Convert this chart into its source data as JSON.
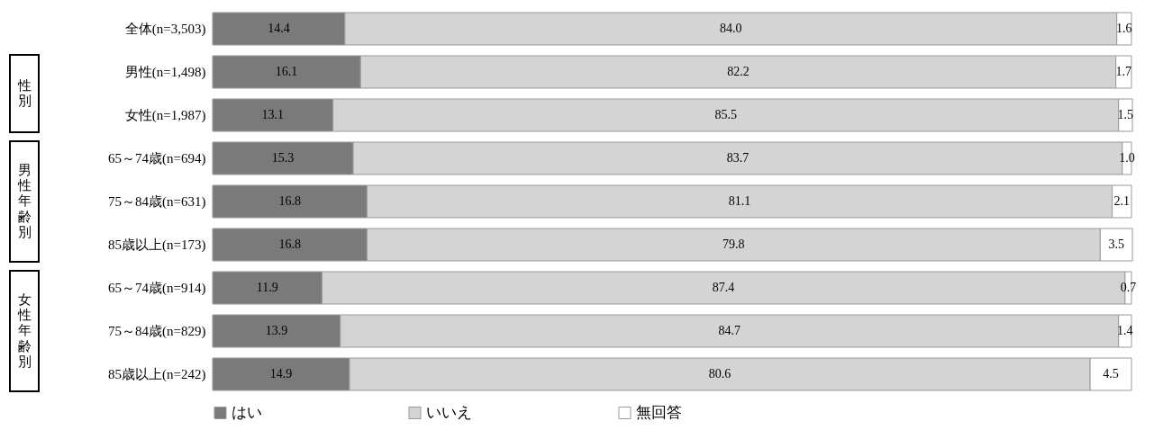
{
  "chart_data": {
    "type": "bar",
    "orientation": "horizontal",
    "stacked": true,
    "legend": "bottom",
    "xlim": [
      0,
      100
    ],
    "categories": [
      "全体(n=3,503)",
      "男性(n=1,498)",
      "女性(n=1,987)",
      "65～74歳(n=694)",
      "75～84歳(n=631)",
      "85歳以上(n=173)",
      "65～74歳(n=914)",
      "75～84歳(n=829)",
      "85歳以上(n=242)"
    ],
    "series": [
      {
        "name": "はい",
        "color": "#7a7a7a",
        "values": [
          14.4,
          16.1,
          13.1,
          15.3,
          16.8,
          16.8,
          11.9,
          13.9,
          14.9
        ],
        "value_labels": [
          "14.4",
          "16.1",
          "13.1",
          "15.3",
          "16.8",
          "16.8",
          "11.9",
          "13.9",
          "14.9"
        ]
      },
      {
        "name": "いいえ",
        "color": "#d4d4d4",
        "values": [
          84.0,
          82.2,
          85.5,
          83.7,
          81.1,
          79.8,
          87.4,
          84.7,
          80.6
        ],
        "value_labels": [
          "84.0",
          "82.2",
          "85.5",
          "83.7",
          "81.1",
          "79.8",
          "87.4",
          "84.7",
          "80.6"
        ]
      },
      {
        "name": "無回答",
        "color": "#ffffff",
        "values": [
          1.6,
          1.7,
          1.5,
          1.0,
          2.1,
          3.5,
          0.7,
          1.4,
          4.5
        ],
        "value_labels": [
          "1.6",
          "1.7",
          "1.5",
          "1.0",
          "2.1",
          "3.5",
          "0.7",
          "1.4",
          "4.5"
        ]
      }
    ],
    "annotations": [
      "性別",
      "男性年齢別",
      "女性年齢別"
    ]
  }
}
